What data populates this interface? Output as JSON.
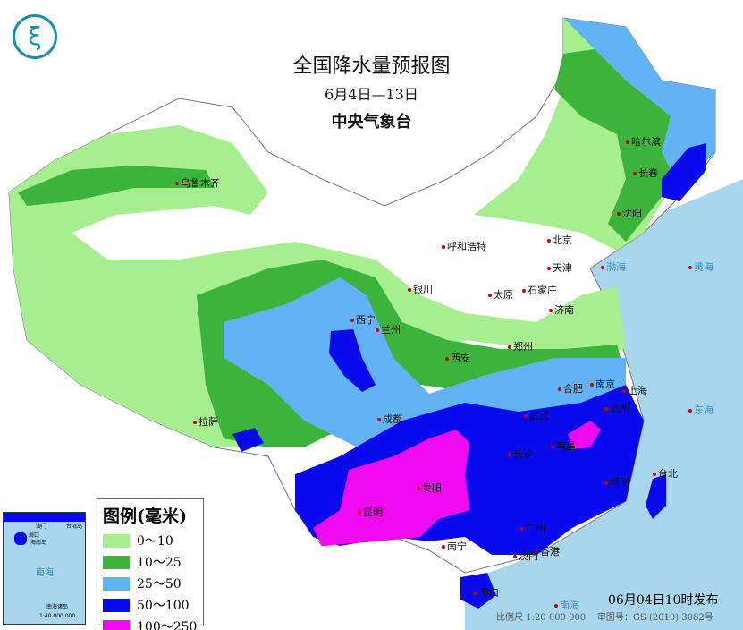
{
  "header": {
    "title": "全国降水量预报图",
    "period": "6月4日—13日",
    "issuer": "中央气象台"
  },
  "legend": {
    "title": "图例(毫米)",
    "items": [
      {
        "label": "0～10",
        "color": "#a6ee90"
      },
      {
        "label": "10～25",
        "color": "#3cb43c"
      },
      {
        "label": "25～50",
        "color": "#62b3f5"
      },
      {
        "label": "50～100",
        "color": "#0a0aee"
      },
      {
        "label": "100～250",
        "color": "#f00af0"
      }
    ]
  },
  "colors": {
    "sea": "#a9d6ef",
    "no_rain": "#ffffff"
  },
  "cities": [
    "乌鲁木齐",
    "哈尔滨",
    "长春",
    "沈阳",
    "北京",
    "天津",
    "呼和浩特",
    "石家庄",
    "太原",
    "济南",
    "银川",
    "西宁",
    "兰州",
    "郑州",
    "西安",
    "合肥",
    "南京",
    "上海",
    "武汉",
    "杭州",
    "成都",
    "拉萨",
    "长沙",
    "南昌",
    "福州",
    "台北",
    "贵阳",
    "昆明",
    "南宁",
    "广州",
    "香港",
    "澳门",
    "海口"
  ],
  "seas": {
    "yellow_sea": "黄海",
    "east_sea": "东海",
    "south_sea": "南海",
    "bohai": "渤海"
  },
  "inset": {
    "labels": [
      "澳门",
      "台湾岛",
      "海口",
      "海南岛",
      "南海",
      "南海诸岛"
    ],
    "scale": "1:40 000 000"
  },
  "footer": {
    "published": "06月04日10时发布",
    "scale": "比例尺 1:20 000 000",
    "approval": "审图号：GS (2019) 3082号"
  },
  "logo_icon": "cma-logo"
}
